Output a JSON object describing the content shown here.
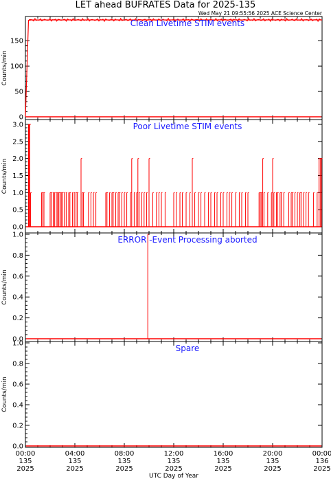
{
  "title": "LET ahead BUFRATES Data for 2025-135",
  "timestamp": "Wed May 21 09:55:56 2025 ACE Science Center",
  "xlabel": "UTC Day of Year",
  "x_ticks": [
    {
      "line1": "00:00",
      "line2": "135",
      "line3": "2025"
    },
    {
      "line1": "04:00",
      "line2": "135",
      "line3": "2025"
    },
    {
      "line1": "08:00",
      "line2": "135",
      "line3": "2025"
    },
    {
      "line1": "12:00",
      "line2": "135",
      "line3": "2025"
    },
    {
      "line1": "16:00",
      "line2": "135",
      "line3": "2025"
    },
    {
      "line1": "20:00",
      "line2": "135",
      "line3": "2025"
    },
    {
      "line1": "00:00",
      "line2": "136",
      "line3": "2025"
    }
  ],
  "colors": {
    "data": "#ff0000",
    "panel_title": "#1a1aff",
    "axes": "#000000"
  },
  "chart_data": [
    {
      "type": "line",
      "title": "Clean Livetime STIM events",
      "ylabel": "Counts/min",
      "xlim": [
        0,
        24
      ],
      "ylim": [
        0,
        195
      ],
      "yticks": [
        0,
        50,
        100,
        150
      ],
      "ytick_labels": [
        "0",
        "50",
        "100",
        "150"
      ],
      "grid": false,
      "series": [
        {
          "x": [
            0,
            0.25,
            0.5,
            24
          ],
          "y": [
            0,
            190,
            191,
            191
          ]
        }
      ]
    },
    {
      "type": "line",
      "title": "Poor Livetime STIM events",
      "ylabel": "Counts/min",
      "xlim": [
        0,
        24
      ],
      "ylim": [
        0,
        3
      ],
      "yticks": [
        0,
        0.5,
        1,
        1.5,
        2,
        2.5,
        3
      ],
      "ytick_labels": [
        "0.0",
        "0.5",
        "1.0",
        "1.5",
        "2.0",
        "2.5",
        "3.0"
      ],
      "grid": false,
      "spikes": [
        [
          0.25,
          3
        ],
        [
          0.3,
          3
        ],
        [
          0.35,
          3
        ],
        [
          0.42,
          1
        ],
        [
          1.3,
          1
        ],
        [
          1.4,
          1
        ],
        [
          1.5,
          1
        ],
        [
          2.0,
          1
        ],
        [
          2.1,
          1
        ],
        [
          2.25,
          1
        ],
        [
          2.35,
          1
        ],
        [
          2.5,
          1
        ],
        [
          2.6,
          1
        ],
        [
          2.7,
          1
        ],
        [
          2.8,
          1
        ],
        [
          2.9,
          1
        ],
        [
          3.0,
          1
        ],
        [
          3.15,
          1
        ],
        [
          3.3,
          1
        ],
        [
          3.5,
          1
        ],
        [
          3.6,
          1
        ],
        [
          3.8,
          1
        ],
        [
          3.95,
          1
        ],
        [
          4.1,
          1
        ],
        [
          4.2,
          1
        ],
        [
          4.5,
          2
        ],
        [
          4.6,
          1
        ],
        [
          4.7,
          1
        ],
        [
          5.1,
          1
        ],
        [
          5.3,
          1
        ],
        [
          5.5,
          1
        ],
        [
          5.7,
          1
        ],
        [
          6.5,
          1
        ],
        [
          6.6,
          1
        ],
        [
          6.8,
          1
        ],
        [
          7.0,
          1
        ],
        [
          7.1,
          1
        ],
        [
          7.3,
          1
        ],
        [
          7.5,
          1
        ],
        [
          7.6,
          1
        ],
        [
          7.8,
          1
        ],
        [
          8.0,
          1
        ],
        [
          8.2,
          1
        ],
        [
          8.5,
          1
        ],
        [
          8.6,
          2
        ],
        [
          8.8,
          1
        ],
        [
          9.0,
          1
        ],
        [
          9.1,
          2
        ],
        [
          9.2,
          1
        ],
        [
          9.4,
          1
        ],
        [
          9.6,
          1
        ],
        [
          9.8,
          1
        ],
        [
          10.0,
          2
        ],
        [
          10.3,
          1
        ],
        [
          10.6,
          1
        ],
        [
          10.8,
          1
        ],
        [
          11.0,
          1
        ],
        [
          11.3,
          1
        ],
        [
          12.0,
          1
        ],
        [
          12.2,
          1
        ],
        [
          12.5,
          1
        ],
        [
          12.7,
          1
        ],
        [
          13.0,
          1
        ],
        [
          13.3,
          1
        ],
        [
          13.5,
          2
        ],
        [
          13.7,
          1
        ],
        [
          14.0,
          1
        ],
        [
          14.2,
          1
        ],
        [
          14.5,
          1
        ],
        [
          14.8,
          1
        ],
        [
          15.0,
          1
        ],
        [
          15.3,
          1
        ],
        [
          15.5,
          1
        ],
        [
          15.8,
          1
        ],
        [
          16.0,
          1
        ],
        [
          16.3,
          1
        ],
        [
          16.5,
          1
        ],
        [
          16.7,
          1
        ],
        [
          17.0,
          1
        ],
        [
          17.3,
          1
        ],
        [
          17.5,
          1
        ],
        [
          17.8,
          1
        ],
        [
          18.0,
          1
        ],
        [
          18.9,
          1
        ],
        [
          19.0,
          1
        ],
        [
          19.1,
          1
        ],
        [
          19.2,
          2
        ],
        [
          19.3,
          1
        ],
        [
          19.6,
          1
        ],
        [
          19.9,
          1
        ],
        [
          20.0,
          2
        ],
        [
          20.1,
          1
        ],
        [
          20.3,
          1
        ],
        [
          20.4,
          1
        ],
        [
          20.6,
          1
        ],
        [
          20.7,
          1
        ],
        [
          20.9,
          1
        ],
        [
          21.3,
          1
        ],
        [
          21.5,
          1
        ],
        [
          21.6,
          1
        ],
        [
          21.8,
          1
        ],
        [
          22.0,
          1
        ],
        [
          22.2,
          1
        ],
        [
          22.3,
          1
        ],
        [
          22.5,
          1
        ],
        [
          22.7,
          1
        ],
        [
          22.9,
          1
        ],
        [
          23.3,
          1
        ],
        [
          23.6,
          1
        ],
        [
          23.75,
          2
        ],
        [
          23.85,
          2
        ],
        [
          23.95,
          2
        ]
      ]
    },
    {
      "type": "line",
      "title": "ERROR -Event Processing aborted",
      "ylabel": "Counts/min",
      "xlim": [
        0,
        24
      ],
      "ylim": [
        0,
        1
      ],
      "yticks": [
        0,
        0.2,
        0.4,
        0.6,
        0.8,
        1.0
      ],
      "ytick_labels": [
        "0.0",
        "0.2",
        "0.4",
        "0.6",
        "0.8",
        "1.0"
      ],
      "grid": false,
      "spikes": [
        [
          9.9,
          1
        ]
      ]
    },
    {
      "type": "line",
      "title": "Spare",
      "ylabel": "Counts/min",
      "xlim": [
        0,
        24
      ],
      "ylim": [
        0,
        1
      ],
      "yticks": [
        0,
        0.2,
        0.4,
        0.6,
        0.8,
        1.0
      ],
      "ytick_labels": [
        "0.0",
        "0.2",
        "0.4",
        "0.6",
        "0.8",
        "1.0"
      ],
      "grid": false,
      "spikes": []
    }
  ]
}
